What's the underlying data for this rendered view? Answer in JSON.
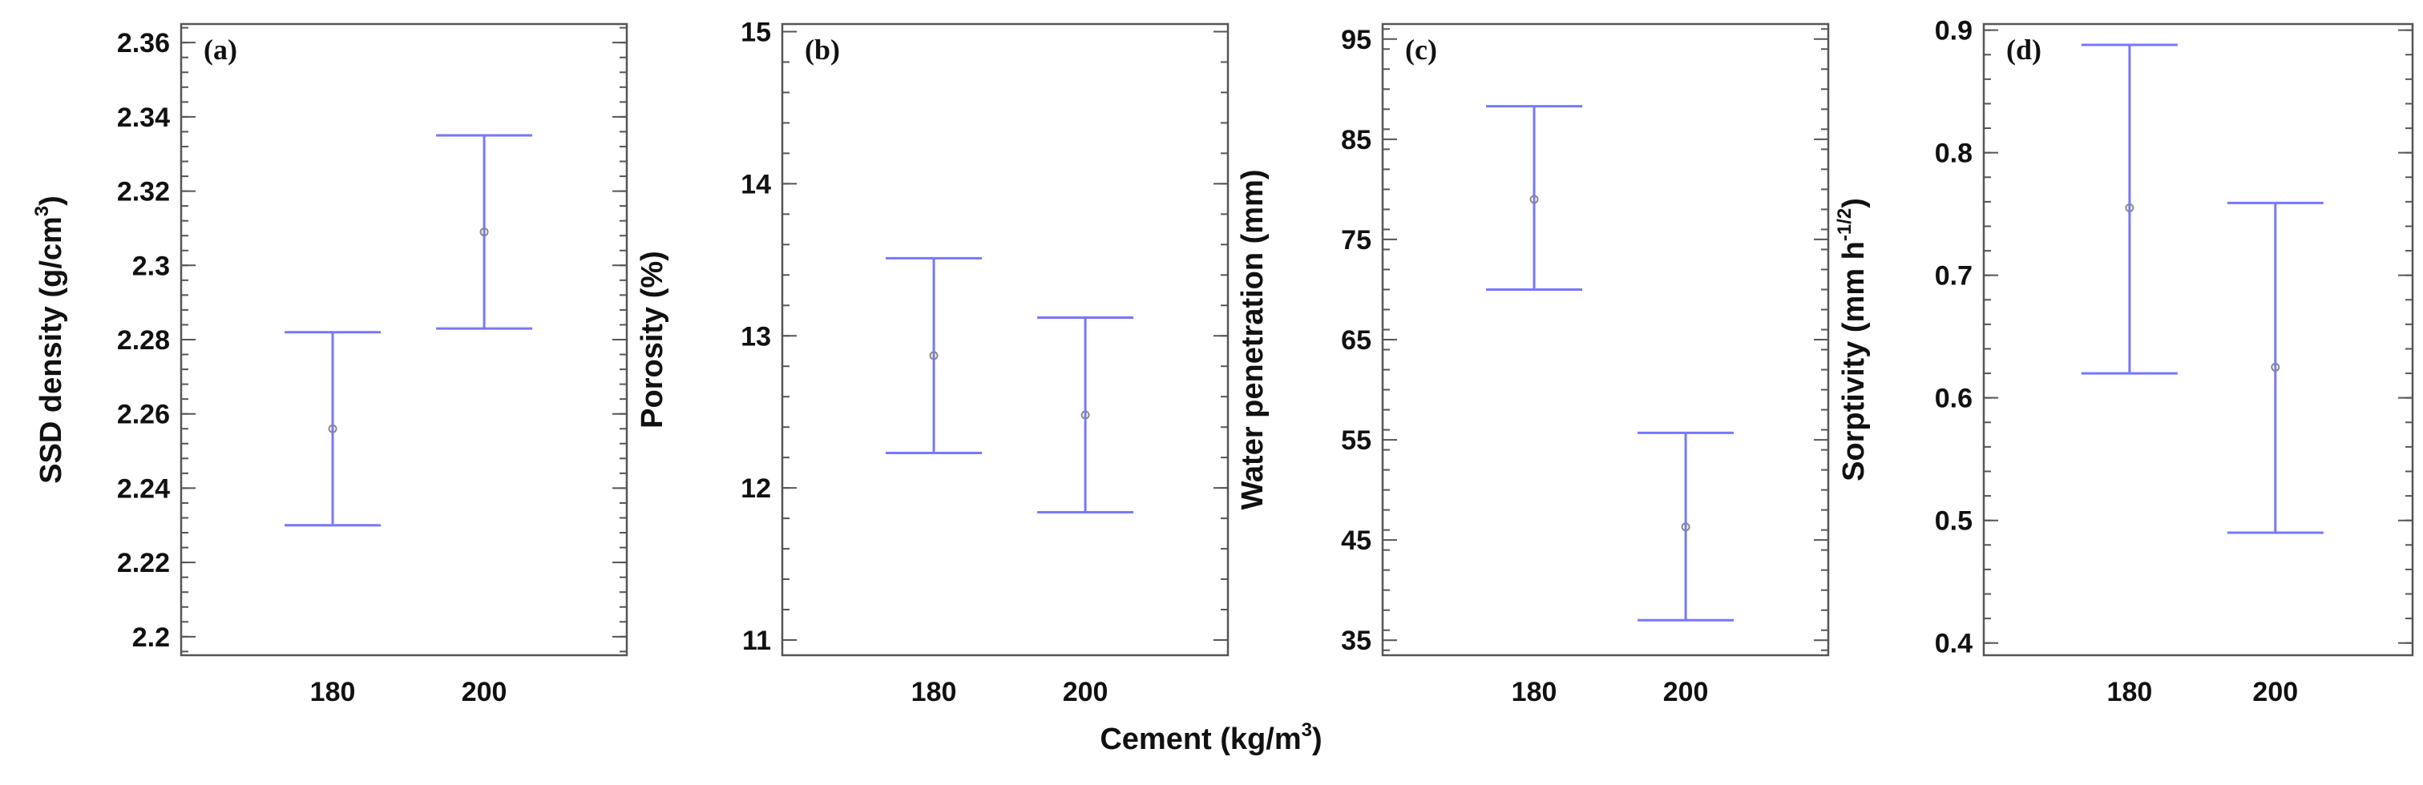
{
  "figure": {
    "xlabel": "Cement (kg/m",
    "xlabel_sup": "3",
    "xlabel_end": ")"
  },
  "chart_data": [
    {
      "type": "errorbar",
      "panel_label": "(a)",
      "ylabel": "SSD density (g/cm",
      "ylabel_sup": "3",
      "ylabel_end": ")",
      "categories": [
        "180",
        "200"
      ],
      "ylim": [
        2.195,
        2.365
      ],
      "yticks": [
        2.2,
        2.22,
        2.24,
        2.26,
        2.28,
        2.3,
        2.32,
        2.34,
        2.36
      ],
      "ytick_labels": [
        "2.2",
        "2.22",
        "2.24",
        "2.26",
        "2.28",
        "2.3",
        "2.32",
        "2.34",
        "2.36"
      ],
      "minor_step": 0.004,
      "series": [
        {
          "mean": [
            2.256,
            2.309
          ],
          "lower": [
            2.23,
            2.283
          ],
          "upper": [
            2.282,
            2.335
          ]
        }
      ]
    },
    {
      "type": "errorbar",
      "panel_label": "(b)",
      "ylabel": "Porosity (%)",
      "ylabel_sup": "",
      "ylabel_end": "",
      "categories": [
        "180",
        "200"
      ],
      "ylim": [
        10.9,
        15.05
      ],
      "yticks": [
        11,
        12,
        13,
        14,
        15
      ],
      "ytick_labels": [
        "11",
        "12",
        "13",
        "14",
        "15"
      ],
      "minor_step": 0.2,
      "series": [
        {
          "mean": [
            12.87,
            12.48
          ],
          "lower": [
            12.23,
            11.84
          ],
          "upper": [
            13.51,
            13.12
          ]
        }
      ]
    },
    {
      "type": "errorbar",
      "panel_label": "(c)",
      "ylabel": "Water penetration (mm)",
      "ylabel_sup": "",
      "ylabel_end": "",
      "categories": [
        "180",
        "200"
      ],
      "ylim": [
        33.5,
        96.5
      ],
      "yticks": [
        35,
        45,
        55,
        65,
        75,
        85,
        95
      ],
      "ytick_labels": [
        "35",
        "45",
        "55",
        "65",
        "75",
        "85",
        "95"
      ],
      "minor_step": 2,
      "series": [
        {
          "mean": [
            79,
            46.3
          ],
          "lower": [
            70,
            37
          ],
          "upper": [
            88.3,
            55.7
          ]
        }
      ]
    },
    {
      "type": "errorbar",
      "panel_label": "(d)",
      "ylabel": "Sorptivity (mm h",
      "ylabel_sup": "-1/2",
      "ylabel_end": ")",
      "categories": [
        "180",
        "200"
      ],
      "ylim": [
        0.39,
        0.905
      ],
      "yticks": [
        0.4,
        0.5,
        0.6,
        0.7,
        0.8,
        0.9
      ],
      "ytick_labels": [
        "0.4",
        "0.5",
        "0.6",
        "0.7",
        "0.8",
        "0.9"
      ],
      "minor_step": 0.02,
      "series": [
        {
          "mean": [
            0.755,
            0.625
          ],
          "lower": [
            0.62,
            0.49
          ],
          "upper": [
            0.888,
            0.759
          ]
        }
      ]
    }
  ]
}
